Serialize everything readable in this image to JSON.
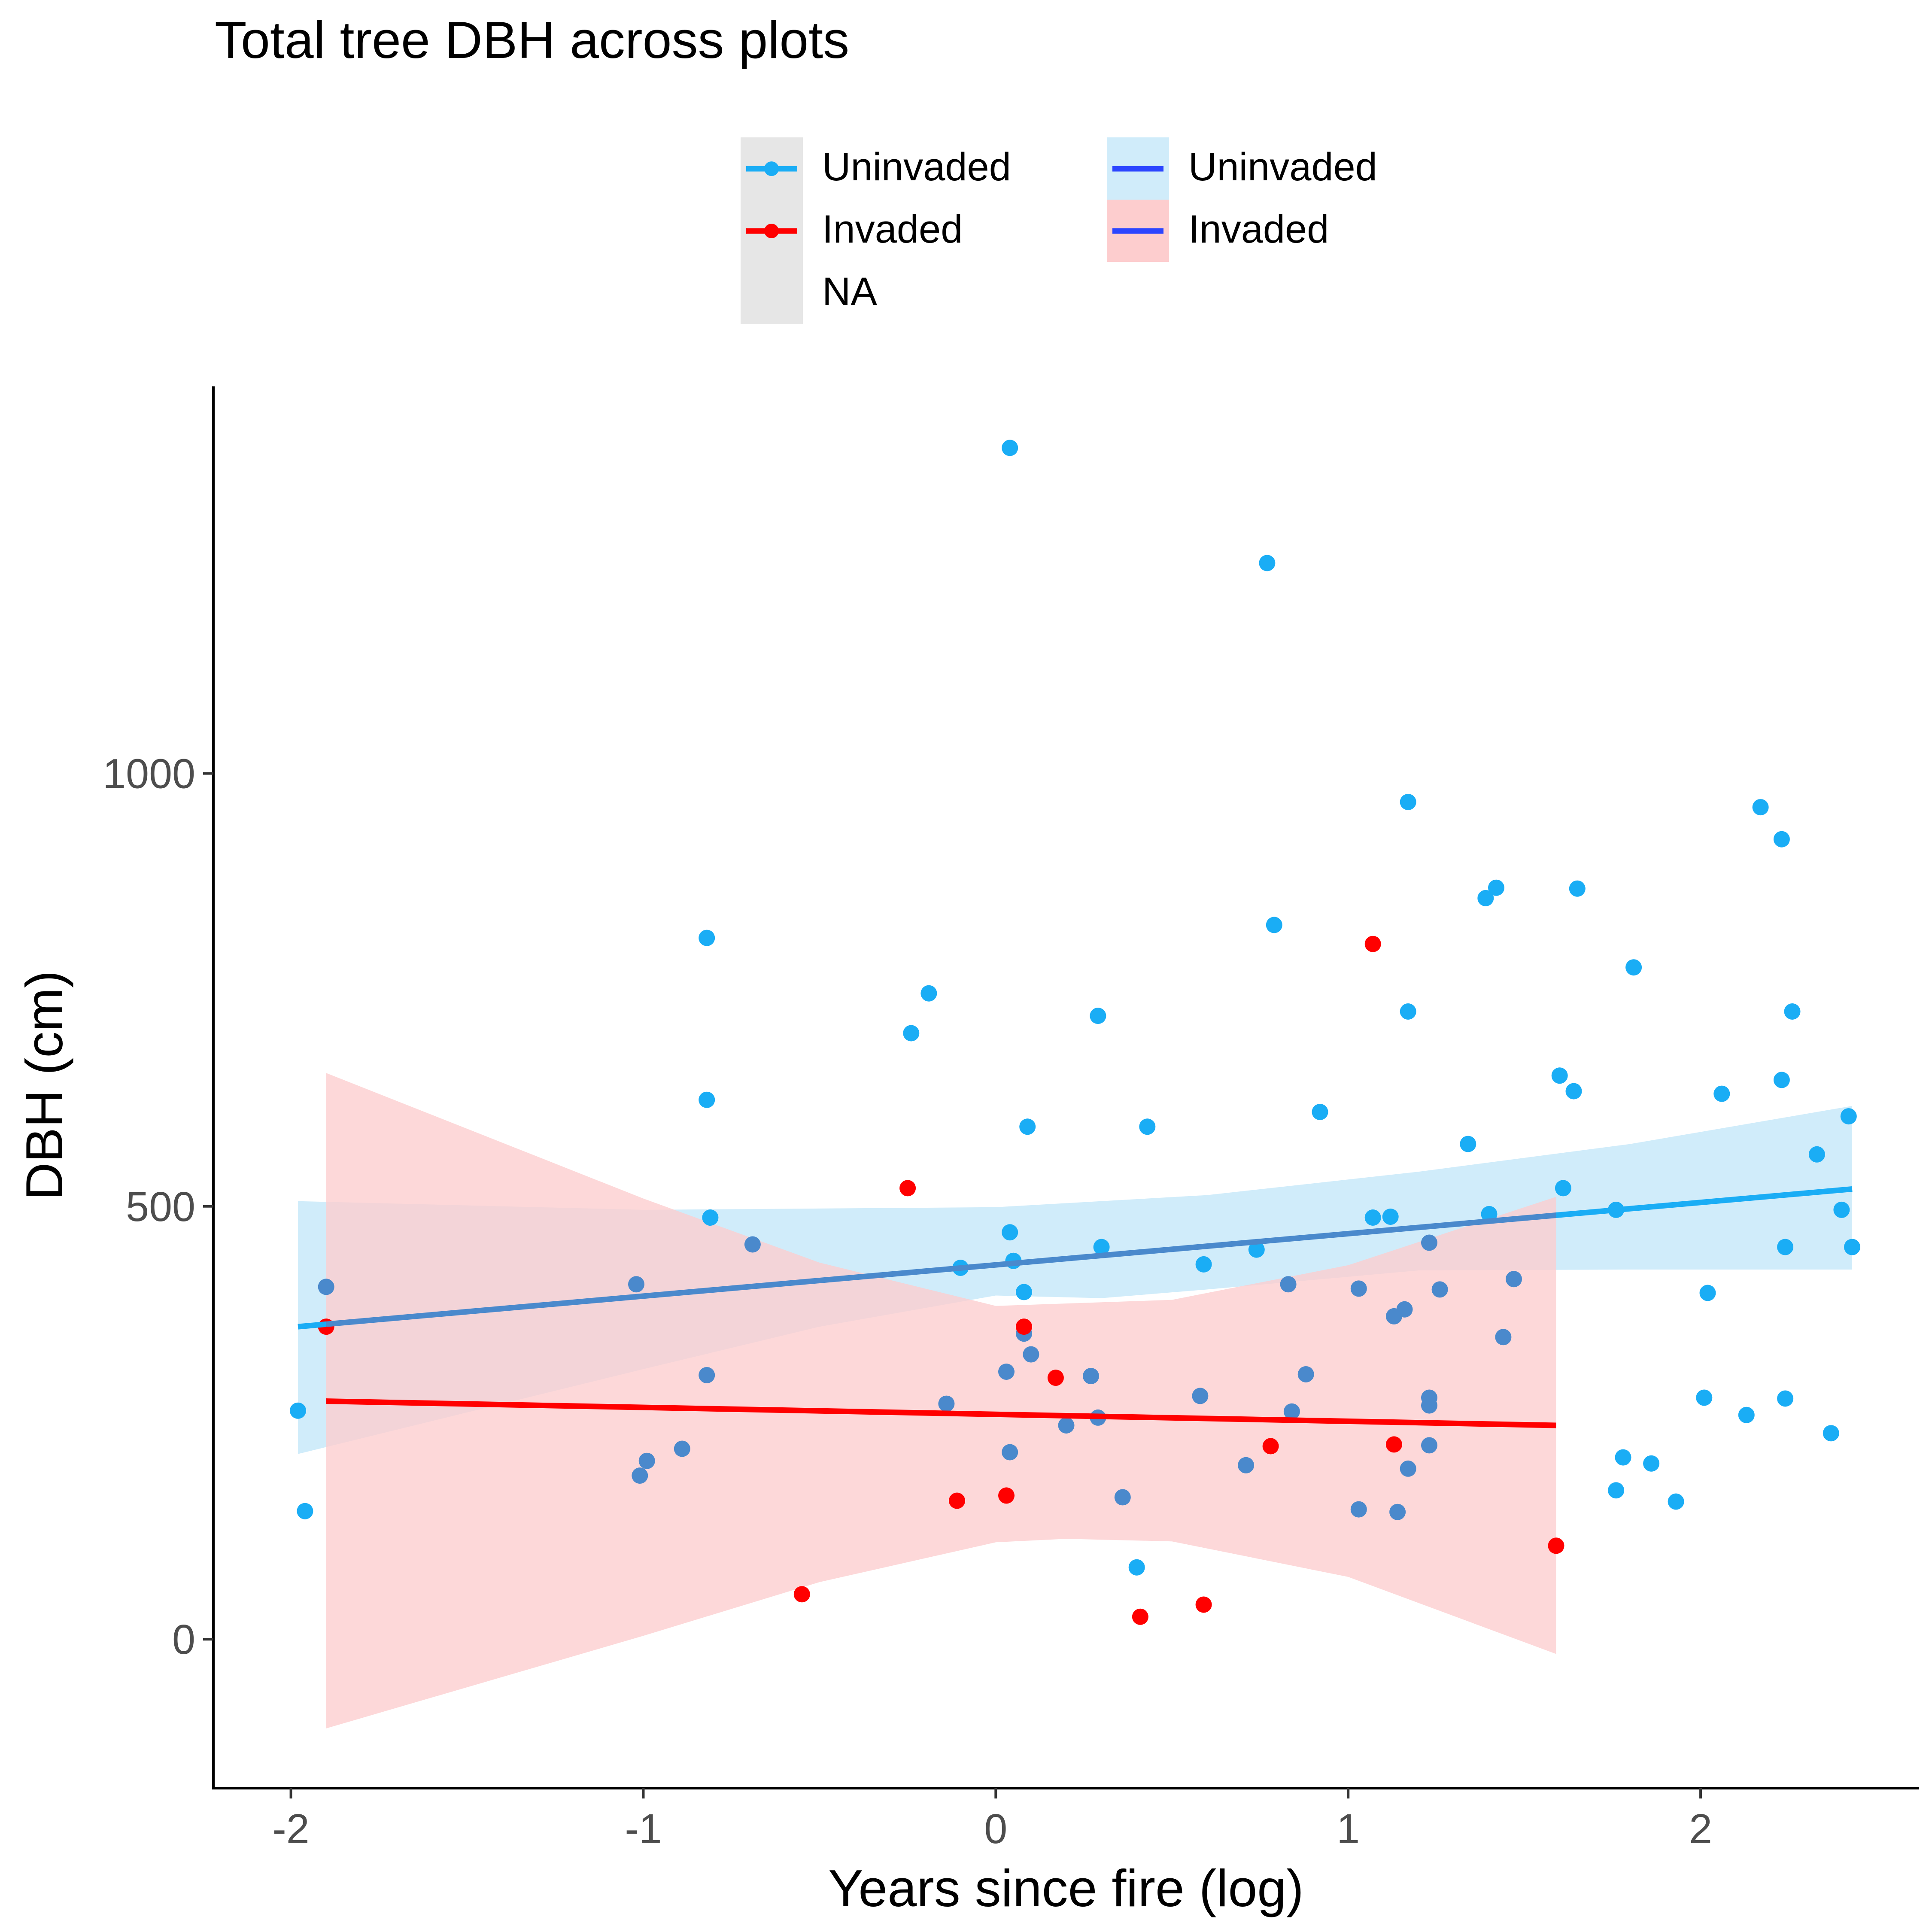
{
  "chart_data": {
    "type": "scatter",
    "title": "Total tree DBH across plots",
    "xlabel": "Years since fire (log)",
    "ylabel": "DBH (cm)",
    "xlim": [
      -2.22,
      2.62
    ],
    "ylim": [
      -172,
      1447
    ],
    "xticks": [
      -2,
      -1,
      0,
      1,
      2
    ],
    "yticks": [
      0,
      500,
      1000
    ],
    "grid": false,
    "legend_position": "top",
    "colors": {
      "uninvaded": "#1AADF5",
      "invaded": "#FF0000",
      "na": "#E6E6E6",
      "fit_line_key": "#2C45FF",
      "uninvaded_ribbon": "#D0ECFA",
      "invaded_ribbon": "#FDCDCE",
      "overlap_point": "#4A89CC",
      "overlap_line": "#4A89CC"
    },
    "legend": {
      "points": [
        "Uninvaded",
        "Invaded",
        "NA"
      ],
      "fits": [
        "Uninvaded",
        "Invaded"
      ]
    },
    "series": [
      {
        "name": "Uninvaded",
        "points": [
          [
            -1.98,
            264
          ],
          [
            -1.96,
            148
          ],
          [
            -1.9,
            407
          ],
          [
            -1.02,
            410
          ],
          [
            -1.01,
            189
          ],
          [
            -0.99,
            206
          ],
          [
            -0.89,
            220
          ],
          [
            -0.82,
            810
          ],
          [
            -0.82,
            623
          ],
          [
            -0.82,
            305
          ],
          [
            -0.81,
            487
          ],
          [
            -0.69,
            456
          ],
          [
            -0.19,
            746
          ],
          [
            -0.24,
            700
          ],
          [
            -0.14,
            272
          ],
          [
            -0.1,
            429
          ],
          [
            0.03,
            309
          ],
          [
            0.04,
            1376
          ],
          [
            0.04,
            470
          ],
          [
            0.04,
            216
          ],
          [
            0.05,
            437
          ],
          [
            0.08,
            401
          ],
          [
            0.08,
            353
          ],
          [
            0.09,
            592
          ],
          [
            0.1,
            329
          ],
          [
            0.2,
            247
          ],
          [
            0.27,
            304
          ],
          [
            0.29,
            256
          ],
          [
            0.29,
            720
          ],
          [
            0.3,
            453
          ],
          [
            0.36,
            164
          ],
          [
            0.4,
            83
          ],
          [
            0.43,
            592
          ],
          [
            0.58,
            281
          ],
          [
            0.59,
            433
          ],
          [
            0.71,
            201
          ],
          [
            0.74,
            450
          ],
          [
            0.77,
            1243
          ],
          [
            0.79,
            825
          ],
          [
            0.83,
            410
          ],
          [
            0.84,
            263
          ],
          [
            0.88,
            306
          ],
          [
            0.92,
            609
          ],
          [
            1.03,
            150
          ],
          [
            1.03,
            405
          ],
          [
            1.07,
            487
          ],
          [
            1.12,
            488
          ],
          [
            1.13,
            373
          ],
          [
            1.14,
            147
          ],
          [
            1.16,
            381
          ],
          [
            1.17,
            197
          ],
          [
            1.17,
            967
          ],
          [
            1.17,
            725
          ],
          [
            1.23,
            458
          ],
          [
            1.23,
            270
          ],
          [
            1.23,
            279
          ],
          [
            1.23,
            224
          ],
          [
            1.26,
            404
          ],
          [
            1.34,
            572
          ],
          [
            1.39,
            856
          ],
          [
            1.4,
            491
          ],
          [
            1.42,
            868
          ],
          [
            1.44,
            349
          ],
          [
            1.47,
            416
          ],
          [
            1.6,
            651
          ],
          [
            1.61,
            521
          ],
          [
            1.64,
            633
          ],
          [
            1.65,
            867
          ],
          [
            1.76,
            496
          ],
          [
            1.76,
            172
          ],
          [
            1.78,
            210
          ],
          [
            1.81,
            776
          ],
          [
            1.86,
            203
          ],
          [
            1.93,
            159
          ],
          [
            2.01,
            279
          ],
          [
            2.02,
            400
          ],
          [
            2.06,
            630
          ],
          [
            2.13,
            259
          ],
          [
            2.17,
            961
          ],
          [
            2.23,
            924
          ],
          [
            2.23,
            646
          ],
          [
            2.24,
            278
          ],
          [
            2.24,
            453
          ],
          [
            2.26,
            725
          ],
          [
            2.33,
            560
          ],
          [
            2.37,
            238
          ],
          [
            2.4,
            496
          ],
          [
            2.42,
            604
          ],
          [
            2.43,
            453
          ]
        ]
      },
      {
        "name": "Invaded",
        "points": [
          [
            -1.9,
            361
          ],
          [
            -0.55,
            52
          ],
          [
            -0.25,
            521
          ],
          [
            -0.11,
            160
          ],
          [
            0.03,
            166
          ],
          [
            0.08,
            361
          ],
          [
            0.17,
            302
          ],
          [
            0.41,
            26
          ],
          [
            0.59,
            40
          ],
          [
            0.78,
            223
          ],
          [
            1.07,
            803
          ],
          [
            1.13,
            225
          ],
          [
            1.59,
            108
          ]
        ]
      }
    ],
    "fits": [
      {
        "name": "Uninvaded",
        "x_range": [
          -1.98,
          2.43
        ],
        "line": [
          [
            -1.98,
            361
          ],
          [
            2.43,
            520
          ]
        ],
        "ribbon": {
          "upper": [
            [
              -1.98,
              506
            ],
            [
              -1.0,
              496
            ],
            [
              0.0,
              499
            ],
            [
              0.6,
              513
            ],
            [
              1.2,
              540
            ],
            [
              1.8,
              572
            ],
            [
              2.43,
              616
            ]
          ],
          "lower": [
            [
              -1.98,
              214
            ],
            [
              -1.0,
              312
            ],
            [
              -0.5,
              361
            ],
            [
              0.0,
              397
            ],
            [
              0.3,
              394
            ],
            [
              0.6,
              404
            ],
            [
              1.2,
              426
            ],
            [
              1.8,
              427
            ],
            [
              2.43,
              427
            ]
          ]
        }
      },
      {
        "name": "Invaded",
        "x_range": [
          -1.9,
          1.59
        ],
        "line": [
          [
            -1.9,
            275
          ],
          [
            1.59,
            247
          ]
        ],
        "ribbon": {
          "upper": [
            [
              -1.9,
              654
            ],
            [
              -1.0,
              509
            ],
            [
              -0.5,
              435
            ],
            [
              0.0,
              385
            ],
            [
              0.5,
              392
            ],
            [
              1.0,
              432
            ],
            [
              1.59,
              511
            ]
          ],
          "lower": [
            [
              -1.9,
              -103
            ],
            [
              -1.0,
              4
            ],
            [
              -0.5,
              66
            ],
            [
              0.0,
              112
            ],
            [
              0.2,
              116
            ],
            [
              0.5,
              113
            ],
            [
              1.0,
              72
            ],
            [
              1.59,
              -17
            ]
          ]
        }
      }
    ]
  }
}
